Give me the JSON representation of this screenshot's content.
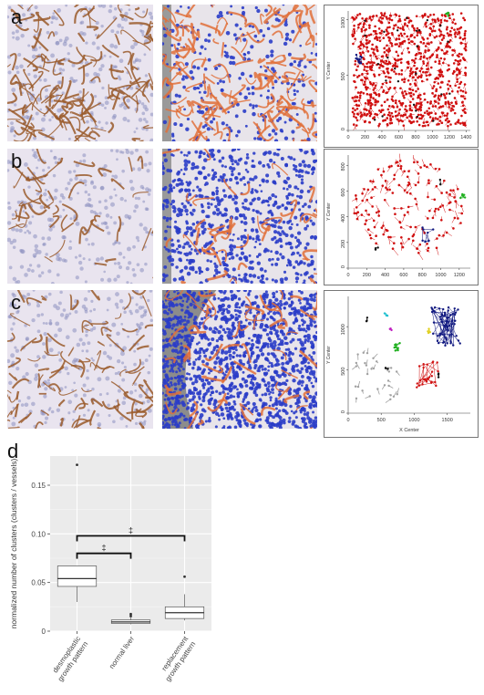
{
  "panel_letters": [
    "a",
    "b",
    "c",
    "d"
  ],
  "colors": {
    "tissue_bg": "#e9e4ef",
    "stain_brown": "#9a5a2a",
    "vessel_red": "#c81e1e",
    "nucleus_blue": "#2a3cc8",
    "scatter_red": "#d01010",
    "scatter_blue": "#101880",
    "scatter_green": "#20b020",
    "scatter_gray": "#a0a0a0",
    "panel_gray": "#ebebeb"
  },
  "scatter_plots": {
    "a": {
      "ylabel": "Y Center",
      "xlabel": "",
      "xticks": [
        "0",
        "200",
        "400",
        "600",
        "800",
        "1000",
        "1200",
        "1400"
      ],
      "yticks": [
        "0",
        "500",
        "1000"
      ],
      "xlim": [
        0,
        1450
      ],
      "ylim": [
        0,
        1080
      ]
    },
    "b": {
      "ylabel": "Y Center",
      "xlabel": "",
      "xticks": [
        "0",
        "200",
        "400",
        "600",
        "800",
        "1000",
        "1200"
      ],
      "yticks": [
        "0",
        "200",
        "400",
        "600",
        "800"
      ],
      "xlim": [
        0,
        1320
      ],
      "ylim": [
        0,
        880
      ]
    },
    "c": {
      "ylabel": "Y Center",
      "xlabel": "X Center",
      "xticks": [
        "0",
        "500",
        "1000",
        "1500"
      ],
      "yticks": [
        "0",
        "500",
        "1000"
      ],
      "xlim": [
        0,
        1850
      ],
      "ylim": [
        0,
        1350
      ]
    }
  },
  "chart_data": {
    "type": "box",
    "title": "",
    "xlabel": "",
    "ylabel": "normalized number of clusters (clusters / vessels)",
    "ylim": [
      0,
      0.18
    ],
    "yticks": [
      "0",
      "0.05",
      "0.10",
      "0.15"
    ],
    "ytick_values": [
      0,
      0.05,
      0.1,
      0.15
    ],
    "categories": [
      "desmoplastic growth pattern",
      "normal liver",
      "replacement growth pattern"
    ],
    "category_lines": [
      [
        "desmoplastic",
        "growth pattern"
      ],
      [
        "normal liver"
      ],
      [
        "replacement",
        "growth pattern"
      ]
    ],
    "boxes": [
      {
        "whisker_low": 0.03,
        "q1": 0.046,
        "median": 0.054,
        "q3": 0.067,
        "whisker_high": 0.067,
        "outliers": [
          0.171
        ]
      },
      {
        "whisker_low": 0.007,
        "q1": 0.008,
        "median": 0.0095,
        "q3": 0.0115,
        "whisker_high": 0.014,
        "outliers": [
          0.0175,
          0.0155
        ]
      },
      {
        "whisker_low": 0.011,
        "q1": 0.013,
        "median": 0.019,
        "q3": 0.025,
        "whisker_high": 0.038,
        "outliers": [
          0.056
        ]
      }
    ],
    "significance": [
      {
        "from": 0,
        "to": 2,
        "y": 0.098,
        "label": "‡"
      },
      {
        "from": 0,
        "to": 1,
        "y": 0.08,
        "label": "‡"
      }
    ],
    "grid": true
  }
}
